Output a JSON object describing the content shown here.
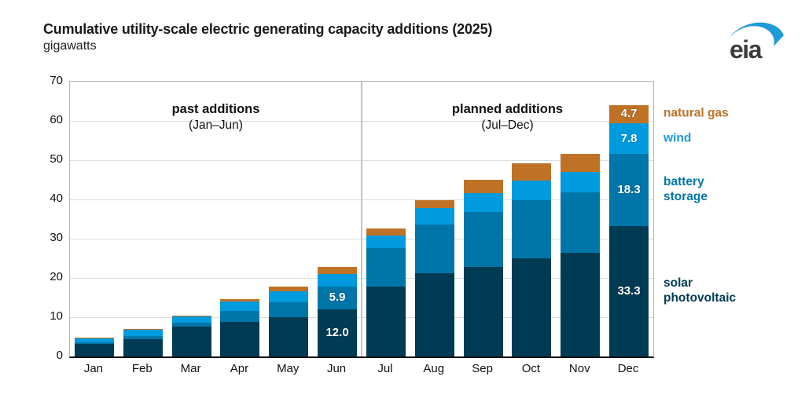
{
  "header": {
    "title": "Cumulative utility-scale electric generating capacity additions (2025)",
    "subtitle": "gigawatts",
    "logo_text": "eia"
  },
  "chart_data": {
    "type": "bar",
    "stacked": true,
    "title": "Cumulative utility-scale electric generating capacity additions (2025)",
    "ylabel": "gigawatts",
    "xlabel": "",
    "ylim": [
      0,
      70
    ],
    "yticks": [
      0,
      10,
      20,
      30,
      40,
      50,
      60,
      70
    ],
    "grid": true,
    "categories": [
      "Jan",
      "Feb",
      "Mar",
      "Apr",
      "May",
      "Jun",
      "Jul",
      "Aug",
      "Sep",
      "Oct",
      "Nov",
      "Dec"
    ],
    "series": [
      {
        "name": "solar photovoltaic",
        "color": "#003b54",
        "values": [
          3.2,
          4.5,
          7.6,
          8.9,
          10.0,
          12.0,
          17.9,
          21.2,
          22.9,
          25.0,
          26.4,
          33.3
        ]
      },
      {
        "name": "battery storage",
        "color": "#0076a8",
        "values": [
          0.4,
          0.8,
          1.0,
          2.7,
          3.9,
          5.9,
          9.7,
          12.4,
          14.0,
          14.8,
          15.4,
          18.3
        ]
      },
      {
        "name": "wind",
        "color": "#009ade",
        "values": [
          1.2,
          1.6,
          1.7,
          2.5,
          2.7,
          3.2,
          3.3,
          4.2,
          4.7,
          5.0,
          5.3,
          7.8
        ]
      },
      {
        "name": "natural gas",
        "color": "#bf7226",
        "values": [
          0.1,
          0.2,
          0.2,
          0.5,
          1.3,
          1.8,
          1.8,
          2.1,
          3.5,
          4.4,
          4.5,
          4.7
        ]
      }
    ],
    "annotations": [
      {
        "title": "past additions",
        "sub": "(Jan–Jun)",
        "x_center_frac": 0.25
      },
      {
        "title": "planned additions",
        "sub": "(Jul–Dec)",
        "x_center_frac": 0.75
      }
    ],
    "bar_value_labels": [
      {
        "category": "Jun",
        "series": "battery storage",
        "text": "5.9"
      },
      {
        "category": "Jun",
        "series": "solar photovoltaic",
        "text": "12.0"
      },
      {
        "category": "Dec",
        "series": "natural gas",
        "text": "4.7"
      },
      {
        "category": "Dec",
        "series": "wind",
        "text": "7.8"
      },
      {
        "category": "Dec",
        "series": "battery storage",
        "text": "18.3"
      },
      {
        "category": "Dec",
        "series": "solar photovoltaic",
        "text": "33.3"
      }
    ],
    "legend_position": "right",
    "legend": [
      {
        "series": "natural gas",
        "label_lines": [
          "natural gas"
        ],
        "color": "#bf7226"
      },
      {
        "series": "wind",
        "label_lines": [
          "wind"
        ],
        "color": "#1b9cd8"
      },
      {
        "series": "battery storage",
        "label_lines": [
          "battery",
          "storage"
        ],
        "color": "#0076a8"
      },
      {
        "series": "solar photovoltaic",
        "label_lines": [
          "solar",
          "photovoltaic"
        ],
        "color": "#003b54"
      }
    ]
  }
}
